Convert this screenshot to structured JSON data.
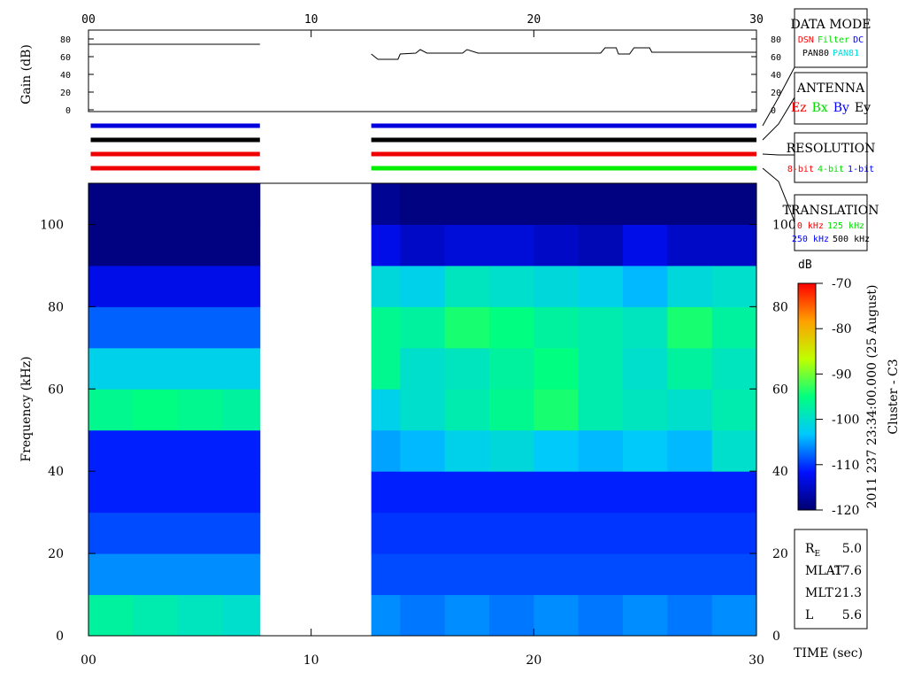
{
  "chart_data": [
    {
      "type": "line",
      "ylabel": "Gain (dB)",
      "x": [
        0,
        7.7,
        10,
        12.7,
        13,
        13.9,
        14,
        14.7,
        14.9,
        15.2,
        16.8,
        17,
        17.5,
        23,
        23.2,
        23.7,
        23.8,
        24.3,
        24.5,
        25.2,
        25.3,
        30
      ],
      "series": [
        {
          "color": "#000000",
          "values": [
            74,
            74,
            null,
            63,
            57,
            57,
            63,
            64,
            68,
            64,
            64,
            68,
            64,
            64,
            70,
            70,
            63,
            63,
            70,
            70,
            65,
            65
          ]
        }
      ],
      "xlim": [
        0,
        30
      ],
      "xticks": [
        {
          "value": 0,
          "label": "00"
        },
        10,
        20,
        30
      ],
      "ylim": [
        -2,
        90
      ],
      "yticks": [
        0,
        20,
        40,
        60,
        80
      ],
      "indicator_bars": {
        "segments": [
          [
            0.1,
            7.7
          ],
          [
            12.7,
            30
          ]
        ],
        "rows": [
          [
            "#0000dd",
            "#0000dd"
          ],
          [
            "#000000",
            "#000000"
          ],
          [
            "#ee0000",
            "#ee0000"
          ],
          [
            "#ee0000",
            "#00ee00"
          ]
        ]
      }
    },
    {
      "type": "heatmap",
      "ylabel": "Frequency (kHz)",
      "xlabel": "TIME (sec)",
      "x_edges": [
        0,
        2,
        4,
        6,
        7.7,
        12.7,
        14,
        16,
        18,
        20,
        22,
        24,
        26,
        28,
        30
      ],
      "y_edges": [
        0,
        10,
        20,
        30,
        40,
        50,
        60,
        70,
        80,
        90,
        100,
        110
      ],
      "z": [
        [
          -97,
          -98,
          -99,
          -100,
          null,
          -106,
          -107,
          -106,
          -107,
          -106,
          -107,
          -106,
          -107,
          -106
        ],
        [
          -106,
          -106,
          -106,
          -106,
          null,
          -109,
          -109,
          -109,
          -109,
          -109,
          -109,
          -109,
          -109,
          -109
        ],
        [
          -109,
          -109,
          -109,
          -109,
          null,
          -110,
          -110,
          -110,
          -110,
          -110,
          -110,
          -110,
          -110,
          -110
        ],
        [
          -111,
          -111,
          -111,
          -111,
          null,
          -111,
          -111,
          -111,
          -111,
          -111,
          -111,
          -111,
          -111,
          -111
        ],
        [
          -111,
          -111,
          -111,
          -111,
          null,
          -105,
          -104,
          -102,
          -101,
          -103,
          -104,
          -103,
          -104,
          -100
        ],
        [
          -96,
          -95,
          -96,
          -97,
          null,
          -102,
          -100,
          -98,
          -96,
          -94,
          -98,
          -99,
          -100,
          -98
        ],
        [
          -102,
          -102,
          -102,
          -102,
          null,
          -96,
          -100,
          -99,
          -97,
          -95,
          -98,
          -100,
          -97,
          -99
        ],
        [
          -108,
          -108,
          -108,
          -108,
          null,
          -96,
          -97,
          -94,
          -95,
          -97,
          -98,
          -99,
          -94,
          -97
        ],
        [
          -113,
          -113,
          -113,
          -113,
          null,
          -101,
          -102,
          -99,
          -100,
          -101,
          -102,
          -104,
          -101,
          -100
        ],
        [
          -119,
          -119,
          -119,
          -119,
          null,
          -113,
          -115,
          -114,
          -114,
          -115,
          -116,
          -113,
          -115,
          -115
        ],
        [
          -119,
          -119,
          -119,
          -119,
          null,
          -118,
          -119,
          -119,
          -119,
          -119,
          -119,
          -119,
          -119,
          -119
        ]
      ],
      "xlim": [
        0,
        30
      ],
      "xticks": [
        {
          "value": 0,
          "label": "00"
        },
        10,
        20,
        30
      ],
      "ylim": [
        0,
        110
      ],
      "yticks": [
        0,
        20,
        40,
        60,
        80,
        100
      ],
      "colorbar": {
        "label": "dB",
        "lim": [
          -120,
          -70
        ],
        "ticks": [
          -70,
          -80,
          -90,
          -100,
          -110,
          -120
        ],
        "colormap": [
          "#000070",
          "#0010ff",
          "#00c8ff",
          "#00ff80",
          "#c0ff00",
          "#ffa000",
          "#ff0000"
        ]
      }
    }
  ],
  "legend_boxes": [
    {
      "title": "DATA MODE",
      "rows": [
        [
          {
            "text": "DSN",
            "color": "#ff0000"
          },
          {
            "text": "Filter",
            "color": "#00dd00"
          },
          {
            "text": "DC",
            "color": "#0000ff"
          }
        ],
        [
          {
            "text": "PAN80",
            "color": "#000000"
          },
          {
            "text": "PAN81",
            "color": "#00dddd"
          }
        ]
      ]
    },
    {
      "title": "ANTENNA",
      "rows": [
        [
          {
            "text": "Ez",
            "color": "#ff0000"
          },
          {
            "text": "Bx",
            "color": "#00dd00"
          },
          {
            "text": "By",
            "color": "#0000ff"
          },
          {
            "text": "Ey",
            "color": "#000000"
          }
        ]
      ]
    },
    {
      "title": "RESOLUTION",
      "rows": [
        [
          {
            "text": "8-bit",
            "color": "#ff0000"
          },
          {
            "text": "4-bit",
            "color": "#00dd00"
          },
          {
            "text": "1-bit",
            "color": "#0000ff"
          }
        ]
      ]
    },
    {
      "title": "TRANSLATION",
      "rows": [
        [
          {
            "text": "0 kHz",
            "color": "#ff0000"
          },
          {
            "text": "125 kHz",
            "color": "#00dd00"
          }
        ],
        [
          {
            "text": "250 kHz",
            "color": "#0000ff"
          },
          {
            "text": "500 kHz",
            "color": "#000000"
          }
        ]
      ]
    }
  ],
  "annotation": {
    "date": "2011 237 23:34:00.000 (25 August)",
    "spacecraft": "Cluster - C3"
  },
  "info": [
    {
      "label": "R",
      "sub": "E",
      "value": "5.0"
    },
    {
      "label": "MLAT",
      "value": "-17.6"
    },
    {
      "label": "MLT",
      "value": "21.3"
    },
    {
      "label": "L",
      "value": "5.6"
    }
  ]
}
